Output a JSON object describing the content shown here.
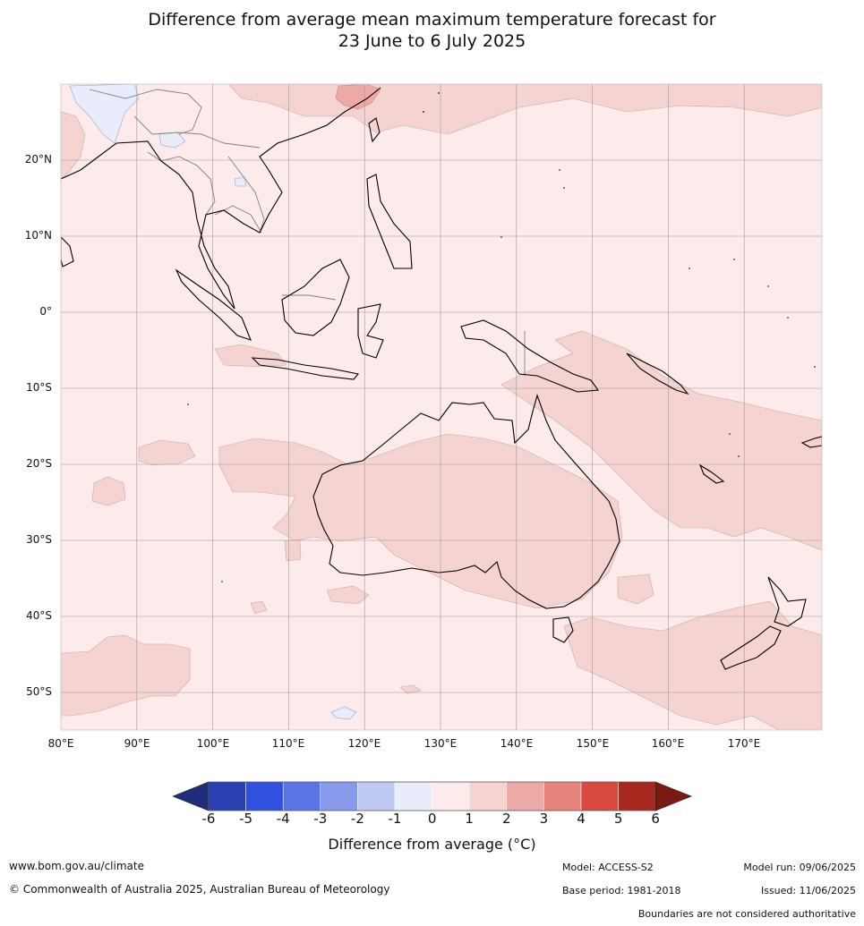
{
  "title_line1": "Difference from average mean maximum temperature forecast for",
  "title_line2": "23 June to 6 July 2025",
  "lat_labels": [
    "20°N",
    "10°N",
    "0°",
    "10°S",
    "20°S",
    "30°S",
    "40°S",
    "50°S"
  ],
  "lon_labels": [
    "80°E",
    "90°E",
    "100°E",
    "110°E",
    "120°E",
    "130°E",
    "140°E",
    "150°E",
    "160°E",
    "170°E"
  ],
  "colorbar": {
    "ticks": [
      "-6",
      "-5",
      "-4",
      "-3",
      "-2",
      "-1",
      "0",
      "1",
      "2",
      "3",
      "4",
      "5",
      "6"
    ],
    "colors": [
      "#1f2d7a",
      "#2a3fb0",
      "#3050e0",
      "#5a74e6",
      "#8899ec",
      "#c0c8f4",
      "#e8ecfb",
      "#fcebea",
      "#f5d3d1",
      "#ecaaa6",
      "#e5837d",
      "#d94a3e",
      "#a8291f",
      "#7a1a13"
    ],
    "label": "Difference from average (°C)"
  },
  "footer": {
    "website": "www.bom.gov.au/climate",
    "copyright": "© Commonwealth of Australia 2025, Australian Bureau of Meteorology",
    "model": "Model: ACCESS-S2",
    "base_period": "Base period: 1981-2018",
    "model_run": "Model run: 09/06/2025",
    "issued": "Issued: 11/06/2025",
    "disclaimer": "Boundaries are not considered authoritative"
  },
  "colors": {
    "ocean_base": "#fcebea",
    "anomaly_1_2": "#f5d3d1",
    "anomaly_2_3": "#ecaaa6",
    "anomaly_neg": "#e8ecfb",
    "coast": "#000000",
    "border": "#808080",
    "grid": "#999999"
  }
}
